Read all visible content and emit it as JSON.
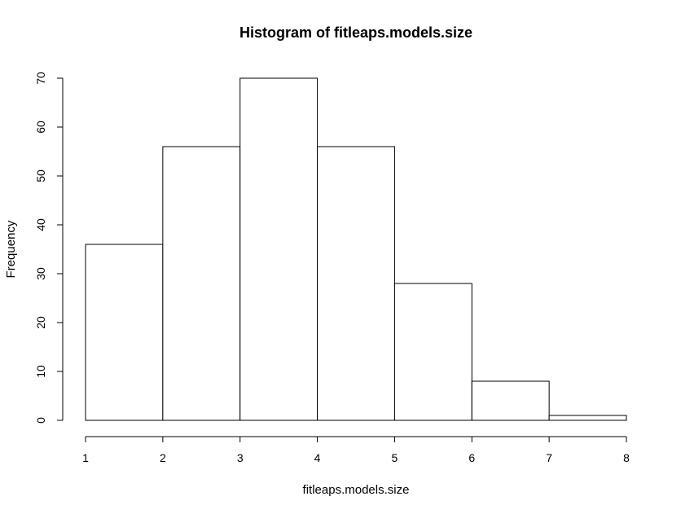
{
  "chart_data": {
    "type": "bar",
    "title": "Histogram of fitleaps.models.size",
    "xlabel": "fitleaps.models.size",
    "ylabel": "Frequency",
    "bins": [
      {
        "from": 1,
        "to": 2,
        "count": 36
      },
      {
        "from": 2,
        "to": 3,
        "count": 56
      },
      {
        "from": 3,
        "to": 4,
        "count": 70
      },
      {
        "from": 4,
        "to": 5,
        "count": 56
      },
      {
        "from": 5,
        "to": 6,
        "count": 28
      },
      {
        "from": 6,
        "to": 7,
        "count": 8
      },
      {
        "from": 7,
        "to": 8,
        "count": 1
      }
    ],
    "xlim": [
      1,
      8
    ],
    "ylim": [
      0,
      70
    ],
    "x_ticks": [
      "1",
      "2",
      "3",
      "4",
      "5",
      "6",
      "7",
      "8"
    ],
    "y_ticks": [
      "0",
      "10",
      "20",
      "30",
      "40",
      "50",
      "60",
      "70"
    ],
    "grid": false,
    "colors": {
      "bar_fill": "#ffffff",
      "bar_stroke": "#000000"
    }
  }
}
